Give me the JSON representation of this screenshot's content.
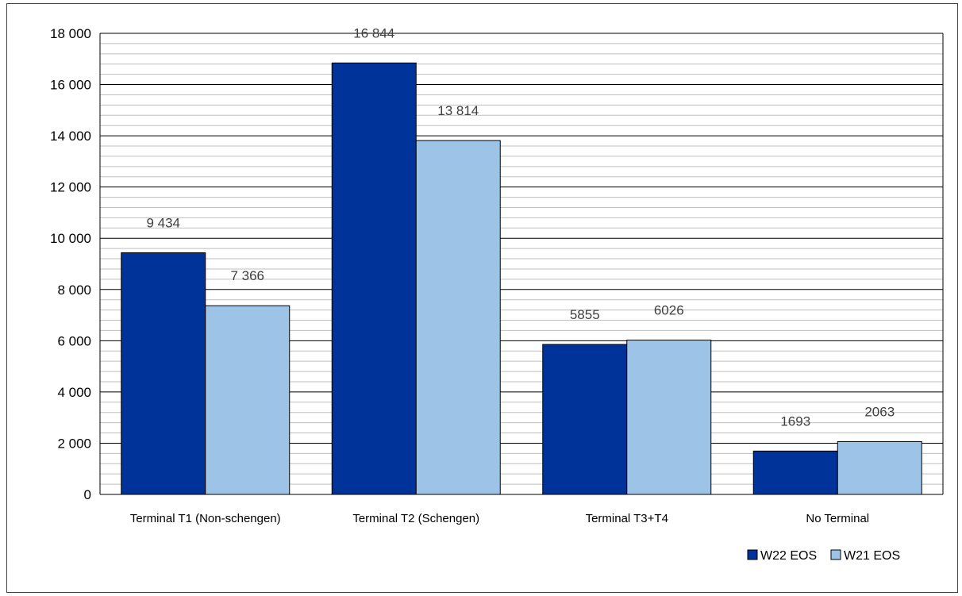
{
  "chart_data": {
    "type": "bar",
    "title": "",
    "xlabel": "",
    "ylabel": "",
    "categories": [
      "Terminal T1 (Non-schengen)",
      "Terminal T2 (Schengen)",
      "Terminal T3+T4",
      "No Terminal"
    ],
    "series": [
      {
        "name": "W22 EOS",
        "color": "#003399",
        "values": [
          9434,
          16844,
          5855,
          1693
        ],
        "labels": [
          "9 434",
          "16 844",
          "5855",
          "1693"
        ]
      },
      {
        "name": "W21 EOS",
        "color": "#9DC3E6",
        "values": [
          7366,
          13814,
          6026,
          2063
        ],
        "labels": [
          "7 366",
          "13 814",
          "6026",
          "2063"
        ]
      }
    ],
    "ylim": [
      0,
      18000
    ],
    "ytick_values": [
      0,
      2000,
      4000,
      6000,
      8000,
      10000,
      12000,
      14000,
      16000,
      18000
    ],
    "ytick_labels": [
      "0",
      "2 000",
      "4 000",
      "6 000",
      "8 000",
      "10 000",
      "12 000",
      "14 000",
      "16 000",
      "18 000"
    ],
    "minor_grid_step": 400,
    "grid": true,
    "legend_position": "bottom-right"
  }
}
